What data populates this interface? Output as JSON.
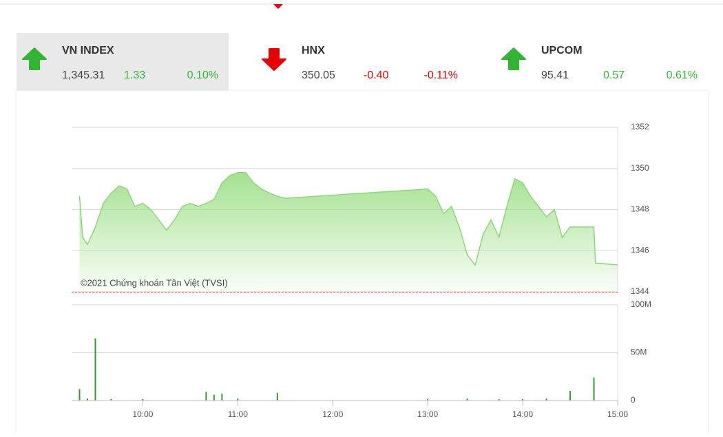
{
  "header": {
    "indices": [
      {
        "name": "VN INDEX",
        "value": "1,345.31",
        "change": "1.33",
        "percent": "0.10%",
        "direction": "up",
        "selected": true
      },
      {
        "name": "HNX",
        "value": "350.05",
        "change": "-0.40",
        "percent": "-0.11%",
        "direction": "down",
        "selected": false
      },
      {
        "name": "UPCOM",
        "value": "95.41",
        "change": "0.57",
        "percent": "0.61%",
        "direction": "up",
        "selected": false
      }
    ]
  },
  "chart_data": [
    {
      "type": "line",
      "annotation": "©2021 Chứng khoán Tân Việt (TVSI)",
      "color": "#8fd67a",
      "reference_line": 1343.98,
      "reference_color": "#e53935",
      "x": [
        "09:20",
        "09:22",
        "09:25",
        "09:30",
        "09:35",
        "09:40",
        "09:45",
        "09:50",
        "09:55",
        "10:00",
        "10:05",
        "10:10",
        "10:15",
        "10:20",
        "10:25",
        "10:30",
        "10:35",
        "10:40",
        "10:45",
        "10:50",
        "10:55",
        "11:00",
        "11:05",
        "11:10",
        "11:15",
        "11:20",
        "11:25",
        "11:30",
        "13:00",
        "13:05",
        "13:10",
        "13:15",
        "13:20",
        "13:25",
        "13:30",
        "13:35",
        "13:40",
        "13:45",
        "13:50",
        "13:55",
        "14:00",
        "14:05",
        "14:10",
        "14:15",
        "14:20",
        "14:25",
        "14:30",
        "14:45",
        "14:46",
        "15:00"
      ],
      "values": [
        1348.65,
        1346.65,
        1346.3,
        1347.15,
        1348.3,
        1348.8,
        1349.15,
        1349.0,
        1348.15,
        1348.3,
        1348.0,
        1347.5,
        1347.0,
        1347.5,
        1348.15,
        1348.3,
        1348.15,
        1348.3,
        1348.5,
        1349.3,
        1349.65,
        1349.8,
        1349.8,
        1349.3,
        1349.0,
        1348.8,
        1348.65,
        1348.55,
        1349.0,
        1348.65,
        1347.8,
        1348.15,
        1347.15,
        1345.8,
        1345.3,
        1346.8,
        1347.5,
        1346.65,
        1348.15,
        1349.5,
        1349.3,
        1348.65,
        1348.15,
        1347.65,
        1348.0,
        1346.65,
        1347.15,
        1347.15,
        1345.4,
        1345.31
      ],
      "xlim": [
        "09:15",
        "15:00"
      ],
      "ylim": [
        1344,
        1352
      ],
      "yticks": [
        1344,
        1346,
        1348,
        1350,
        1352
      ],
      "grid": true
    },
    {
      "type": "bar",
      "color": "#2e9e2e",
      "x": [
        "09:20",
        "09:25",
        "09:30",
        "09:40",
        "10:00",
        "10:40",
        "10:45",
        "10:50",
        "11:00",
        "11:25",
        "13:00",
        "13:25",
        "13:45",
        "14:00",
        "14:15",
        "14:30",
        "14:45"
      ],
      "values": [
        12000000,
        2000000,
        65000000,
        1500000,
        1500000,
        9000000,
        6000000,
        7000000,
        2000000,
        8000000,
        1500000,
        2000000,
        1500000,
        1500000,
        2000000,
        10000000,
        24000000
      ],
      "xlim": [
        "09:15",
        "15:00"
      ],
      "ylim": [
        0,
        100000000
      ],
      "yticks": [
        0,
        {
          "value": 50000000,
          "label": "50M"
        },
        {
          "value": 100000000,
          "label": "100M"
        }
      ],
      "xticks": [
        "10:00",
        "11:00",
        "12:00",
        "13:00",
        "14:00",
        "15:00"
      ],
      "grid": true
    }
  ]
}
